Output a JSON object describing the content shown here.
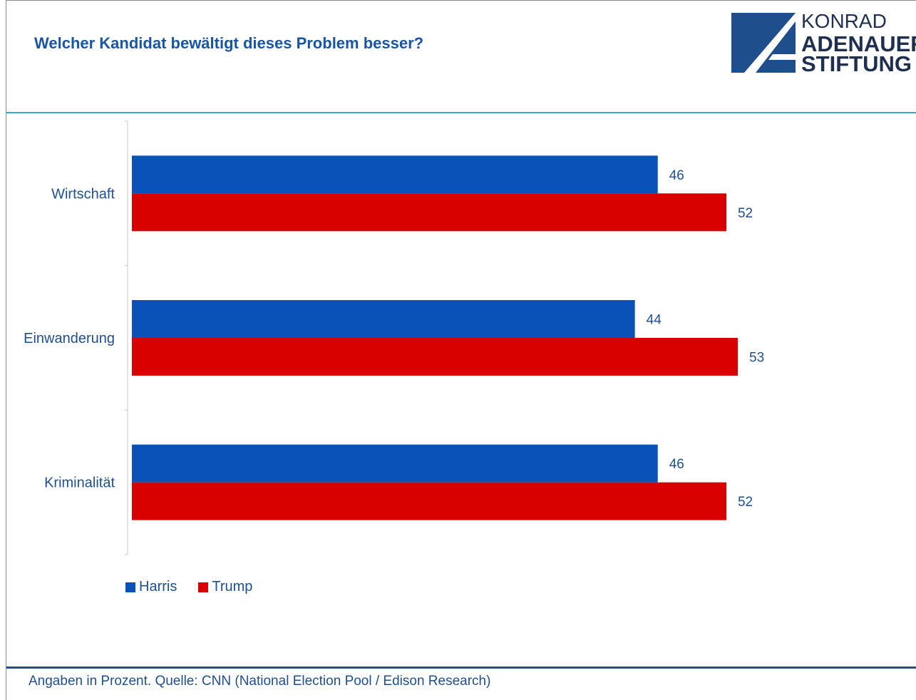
{
  "header": {
    "title": "Welcher Kandidat bewältigt dieses Problem besser?"
  },
  "logo": {
    "line1": "KONRAD",
    "line2": "ADENAUER",
    "line3": "STIFTUNG"
  },
  "footer": {
    "source": "Angaben in Prozent. Quelle: CNN (National Election Pool / Edison Research)"
  },
  "colors": {
    "harris": "#0a52b8",
    "trump": "#d90000",
    "title": "#1a55a3",
    "accent_rule": "#2ab3c6",
    "footer_rule": "#1f4e8c",
    "label_text": "#1e4f8f"
  },
  "chart_data": {
    "type": "bar",
    "orientation": "horizontal",
    "categories": [
      "Wirtschaft",
      "Einwanderung",
      "Kriminalität"
    ],
    "series": [
      {
        "name": "Harris",
        "values": [
          46,
          44,
          46
        ]
      },
      {
        "name": "Trump",
        "values": [
          52,
          53,
          52
        ]
      }
    ],
    "xlim": [
      0,
      60
    ],
    "grid": false,
    "legend": "bottom-left",
    "data_labels": true
  }
}
